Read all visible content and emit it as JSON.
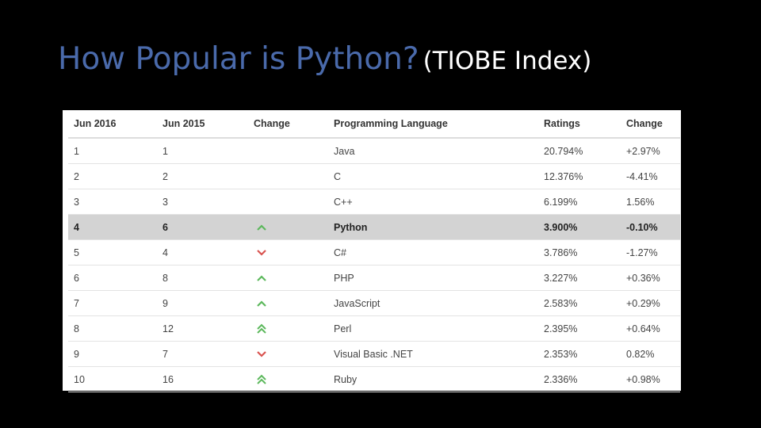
{
  "slide": {
    "title_main": "How Popular is Python?",
    "title_sub": "(TIOBE Index)"
  },
  "table": {
    "headers": [
      "Jun 2016",
      "Jun 2015",
      "Change",
      "Programming Language",
      "Ratings",
      "Change"
    ],
    "rows": [
      {
        "jun2016": "1",
        "jun2015": "1",
        "trend": "",
        "language": "Java",
        "rating": "20.794%",
        "change": "+2.97%"
      },
      {
        "jun2016": "2",
        "jun2015": "2",
        "trend": "",
        "language": "C",
        "rating": "12.376%",
        "change": "-4.41%"
      },
      {
        "jun2016": "3",
        "jun2015": "3",
        "trend": "",
        "language": "C++",
        "rating": "6.199%",
        "change": "1.56%"
      },
      {
        "jun2016": "4",
        "jun2015": "6",
        "trend": "up",
        "language": "Python",
        "rating": "3.900%",
        "change": "-0.10%",
        "highlighted": true
      },
      {
        "jun2016": "5",
        "jun2015": "4",
        "trend": "down",
        "language": "C#",
        "rating": "3.786%",
        "change": "-1.27%"
      },
      {
        "jun2016": "6",
        "jun2015": "8",
        "trend": "up",
        "language": "PHP",
        "rating": "3.227%",
        "change": "+0.36%"
      },
      {
        "jun2016": "7",
        "jun2015": "9",
        "trend": "up",
        "language": "JavaScript",
        "rating": "2.583%",
        "change": "+0.29%"
      },
      {
        "jun2016": "8",
        "jun2015": "12",
        "trend": "double-up",
        "language": "Perl",
        "rating": "2.395%",
        "change": "+0.64%"
      },
      {
        "jun2016": "9",
        "jun2015": "7",
        "trend": "down",
        "language": "Visual Basic .NET",
        "rating": "2.353%",
        "change": "0.82%"
      },
      {
        "jun2016": "10",
        "jun2015": "16",
        "trend": "double-up",
        "language": "Ruby",
        "rating": "2.336%",
        "change": "+0.98%"
      }
    ]
  },
  "colors": {
    "title_accent": "#4a6aab",
    "up_arrow": "#5cb85c",
    "down_arrow": "#d9534f",
    "highlight_row": "#d3d3d3"
  }
}
